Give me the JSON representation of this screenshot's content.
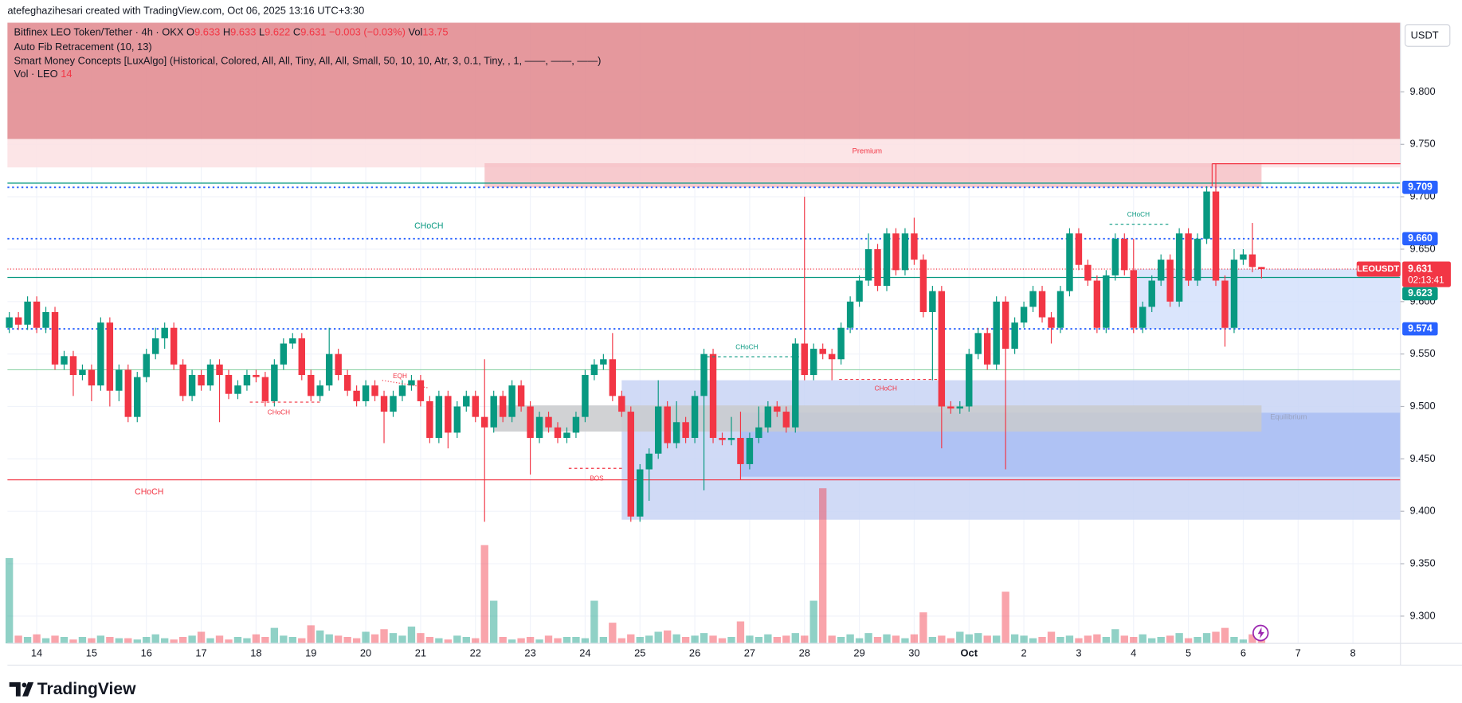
{
  "header": {
    "caption": "atefeghazihesari created with TradingView.com, Oct 06, 2025 13:16 UTC+3:30",
    "currency": "USDT",
    "brand": "TradingView"
  },
  "legend": {
    "symbol": "Bitfinex LEO Token/Tether · 4h · OKX",
    "ohlc": [
      {
        "key": "O",
        "value": "9.633"
      },
      {
        "key": "H",
        "value": "9.633"
      },
      {
        "key": "L",
        "value": "9.622"
      },
      {
        "key": "C",
        "value": "9.631"
      }
    ],
    "change": "−0.003 (−0.03%)",
    "vol_key": "Vol",
    "vol_value": "13.75",
    "indicators": [
      "Auto Fib Retracement (10, 13)",
      "Smart Money Concepts [LuxAlgo] (Historical, Colored, All, All, Tiny, All, All, Small, 50, 10, 10, Atr, 3, 0.1, Tiny, , 1, ——, ——, ——)"
    ],
    "volume_key": "Vol · LEO",
    "volume_value": "14"
  },
  "annotations": [
    "CHoCH",
    "CHoCH",
    "CHoCH",
    "EQH",
    "BOS",
    "CHoCH",
    "CHoCH",
    "CHoCH",
    "Premium",
    "Equilibrium"
  ],
  "chart_data": {
    "type": "candlestick",
    "up_color": "#089981",
    "down_color": "#f23645",
    "xlim": [
      -0.2,
      152.2
    ],
    "ylim": [
      9.274,
      9.866
    ],
    "yticks": [
      {
        "value": 9.8,
        "label": "9.800"
      },
      {
        "value": 9.75,
        "label": "9.750"
      },
      {
        "value": 9.7,
        "label": "9.700"
      },
      {
        "value": 9.65,
        "label": "9.650"
      },
      {
        "value": 9.6,
        "label": "9.600"
      },
      {
        "value": 9.55,
        "label": "9.550"
      },
      {
        "value": 9.5,
        "label": "9.500"
      },
      {
        "value": 9.45,
        "label": "9.450"
      },
      {
        "value": 9.4,
        "label": "9.400"
      },
      {
        "value": 9.35,
        "label": "9.350"
      },
      {
        "value": 9.3,
        "label": "9.300"
      }
    ],
    "xticks": [
      {
        "value": 3,
        "label": "14"
      },
      {
        "value": 9,
        "label": "15"
      },
      {
        "value": 15,
        "label": "16"
      },
      {
        "value": 21,
        "label": "17"
      },
      {
        "value": 27,
        "label": "18"
      },
      {
        "value": 33,
        "label": "19"
      },
      {
        "value": 39,
        "label": "20"
      },
      {
        "value": 45,
        "label": "21"
      },
      {
        "value": 51,
        "label": "22"
      },
      {
        "value": 57,
        "label": "23"
      },
      {
        "value": 63,
        "label": "24"
      },
      {
        "value": 69,
        "label": "25"
      },
      {
        "value": 75,
        "label": "26"
      },
      {
        "value": 81,
        "label": "27"
      },
      {
        "value": 87,
        "label": "28"
      },
      {
        "value": 93,
        "label": "29"
      },
      {
        "value": 99,
        "label": "30"
      },
      {
        "value": 105,
        "label": "Oct"
      },
      {
        "value": 111,
        "label": "2"
      },
      {
        "value": 117,
        "label": "3"
      },
      {
        "value": 123,
        "label": "4"
      },
      {
        "value": 129,
        "label": "5"
      },
      {
        "value": 135,
        "label": "6"
      },
      {
        "value": 141,
        "label": "7"
      },
      {
        "value": 147,
        "label": "8"
      }
    ],
    "grid": true,
    "open": [
      9.575,
      9.585,
      9.578,
      9.6,
      9.575,
      9.59,
      9.54,
      9.548,
      9.53,
      9.535,
      9.52,
      9.58,
      9.515,
      9.535,
      9.49,
      9.528,
      9.55,
      9.565,
      9.575,
      9.54,
      9.51,
      9.53,
      9.52,
      9.54,
      9.53,
      9.512,
      9.52,
      9.53,
      9.528,
      9.505,
      9.54,
      9.56,
      9.565,
      9.53,
      9.51,
      9.52,
      9.55,
      9.53,
      9.515,
      9.505,
      9.52,
      9.51,
      9.495,
      9.51,
      9.52,
      9.525,
      9.505,
      9.47,
      9.51,
      9.475,
      9.5,
      9.51,
      9.49,
      9.48,
      9.51,
      9.49,
      9.52,
      9.5,
      9.47,
      9.49,
      9.48,
      9.47,
      9.475,
      9.49,
      9.53,
      9.54,
      9.545,
      9.51,
      9.495,
      9.395,
      9.44,
      9.455,
      9.5,
      9.465,
      9.485,
      9.47,
      9.51,
      9.55,
      9.47,
      9.468,
      9.47,
      9.445,
      9.47,
      9.48,
      9.5,
      9.495,
      9.48,
      9.56,
      9.53,
      9.555,
      9.55,
      9.545,
      9.575,
      9.6,
      9.62,
      9.65,
      9.615,
      9.665,
      9.63,
      9.665,
      9.64,
      9.59,
      9.61,
      9.5,
      9.498,
      9.5,
      9.55,
      9.57,
      9.54,
      9.6,
      9.555,
      9.58,
      9.595,
      9.61,
      9.585,
      9.575,
      9.61,
      9.665,
      9.635,
      9.62,
      9.575,
      9.625,
      9.66,
      9.63,
      9.575,
      9.595,
      9.62,
      9.64,
      9.6,
      9.665,
      9.62,
      9.66,
      9.705,
      9.62,
      9.575,
      9.64,
      9.645,
      9.633
    ],
    "high": [
      9.59,
      9.59,
      9.605,
      9.605,
      9.595,
      9.595,
      9.553,
      9.553,
      9.54,
      9.54,
      9.585,
      9.585,
      9.54,
      9.54,
      9.533,
      9.555,
      9.575,
      9.58,
      9.58,
      9.545,
      9.535,
      9.535,
      9.545,
      9.545,
      9.535,
      9.525,
      9.535,
      9.535,
      9.533,
      9.545,
      9.565,
      9.57,
      9.57,
      9.535,
      9.525,
      9.575,
      9.555,
      9.535,
      9.52,
      9.525,
      9.525,
      9.515,
      9.515,
      9.525,
      9.53,
      9.53,
      9.51,
      9.515,
      9.515,
      9.505,
      9.515,
      9.515,
      9.545,
      9.515,
      9.515,
      9.525,
      9.525,
      9.505,
      9.495,
      9.495,
      9.485,
      9.48,
      9.495,
      9.535,
      9.545,
      9.55,
      9.57,
      9.515,
      9.5,
      9.445,
      9.46,
      9.525,
      9.505,
      9.505,
      9.49,
      9.515,
      9.555,
      9.555,
      9.475,
      9.49,
      9.495,
      9.475,
      9.5,
      9.505,
      9.505,
      9.5,
      9.565,
      9.7,
      9.56,
      9.56,
      9.555,
      9.58,
      9.605,
      9.625,
      9.665,
      9.655,
      9.67,
      9.67,
      9.67,
      9.68,
      9.645,
      9.615,
      9.615,
      9.505,
      9.505,
      9.555,
      9.575,
      9.575,
      9.605,
      9.605,
      9.585,
      9.6,
      9.615,
      9.615,
      9.59,
      9.615,
      9.67,
      9.67,
      9.64,
      9.625,
      9.63,
      9.665,
      9.665,
      9.66,
      9.6,
      9.625,
      9.645,
      9.645,
      9.67,
      9.67,
      9.665,
      9.71,
      9.732,
      9.625,
      9.65,
      9.65,
      9.675,
      9.633
    ],
    "low": [
      9.57,
      9.573,
      9.573,
      9.57,
      9.57,
      9.535,
      9.535,
      9.51,
      9.525,
      9.505,
      9.515,
      9.5,
      9.505,
      9.485,
      9.485,
      9.523,
      9.545,
      9.555,
      9.535,
      9.505,
      9.505,
      9.515,
      9.515,
      9.485,
      9.507,
      9.507,
      9.515,
      9.523,
      9.5,
      9.5,
      9.535,
      9.555,
      9.525,
      9.505,
      9.505,
      9.515,
      9.525,
      9.51,
      9.5,
      9.5,
      9.505,
      9.465,
      9.49,
      9.505,
      9.515,
      9.5,
      9.465,
      9.465,
      9.46,
      9.47,
      9.495,
      9.485,
      9.39,
      9.475,
      9.485,
      9.485,
      9.495,
      9.435,
      9.465,
      9.475,
      9.465,
      9.465,
      9.47,
      9.485,
      9.525,
      9.535,
      9.505,
      9.49,
      9.39,
      9.39,
      9.41,
      9.45,
      9.46,
      9.46,
      9.465,
      9.465,
      9.42,
      9.465,
      9.463,
      9.463,
      9.43,
      9.44,
      9.465,
      9.475,
      9.49,
      9.475,
      9.475,
      9.525,
      9.525,
      9.545,
      9.525,
      9.54,
      9.57,
      9.595,
      9.615,
      9.61,
      9.61,
      9.625,
      9.625,
      9.635,
      9.585,
      9.525,
      9.46,
      9.493,
      9.493,
      9.495,
      9.545,
      9.535,
      9.535,
      9.44,
      9.55,
      9.575,
      9.59,
      9.58,
      9.56,
      9.57,
      9.605,
      9.63,
      9.615,
      9.57,
      9.57,
      9.62,
      9.625,
      9.57,
      9.57,
      9.59,
      9.615,
      9.595,
      9.595,
      9.615,
      9.615,
      9.655,
      9.615,
      9.557,
      9.57,
      9.635,
      9.628,
      9.622
    ],
    "close": [
      9.585,
      9.578,
      9.6,
      9.575,
      9.59,
      9.54,
      9.548,
      9.53,
      9.535,
      9.52,
      9.58,
      9.515,
      9.535,
      9.49,
      9.528,
      9.55,
      9.565,
      9.575,
      9.54,
      9.51,
      9.53,
      9.52,
      9.54,
      9.53,
      9.512,
      9.52,
      9.53,
      9.528,
      9.505,
      9.54,
      9.56,
      9.565,
      9.53,
      9.51,
      9.52,
      9.55,
      9.53,
      9.515,
      9.505,
      9.52,
      9.51,
      9.495,
      9.51,
      9.52,
      9.525,
      9.505,
      9.47,
      9.51,
      9.475,
      9.5,
      9.51,
      9.49,
      9.48,
      9.51,
      9.49,
      9.52,
      9.5,
      9.47,
      9.49,
      9.48,
      9.47,
      9.475,
      9.49,
      9.53,
      9.54,
      9.545,
      9.51,
      9.495,
      9.395,
      9.44,
      9.455,
      9.5,
      9.465,
      9.485,
      9.47,
      9.51,
      9.55,
      9.47,
      9.468,
      9.47,
      9.445,
      9.47,
      9.48,
      9.5,
      9.495,
      9.48,
      9.56,
      9.53,
      9.555,
      9.55,
      9.545,
      9.575,
      9.6,
      9.62,
      9.65,
      9.615,
      9.665,
      9.63,
      9.665,
      9.64,
      9.59,
      9.61,
      9.5,
      9.498,
      9.5,
      9.55,
      9.57,
      9.54,
      9.6,
      9.555,
      9.58,
      9.595,
      9.61,
      9.585,
      9.575,
      9.61,
      9.665,
      9.635,
      9.62,
      9.575,
      9.625,
      9.66,
      9.63,
      9.575,
      9.595,
      9.62,
      9.64,
      9.6,
      9.665,
      9.62,
      9.66,
      9.705,
      9.62,
      9.575,
      9.64,
      9.645,
      9.633,
      9.631
    ],
    "volume": [
      330,
      30,
      25,
      35,
      20,
      30,
      25,
      15,
      25,
      20,
      30,
      25,
      20,
      20,
      15,
      25,
      35,
      20,
      15,
      25,
      30,
      45,
      20,
      30,
      15,
      25,
      20,
      35,
      25,
      60,
      30,
      25,
      20,
      70,
      50,
      35,
      30,
      25,
      20,
      45,
      35,
      55,
      40,
      30,
      65,
      40,
      25,
      20,
      15,
      30,
      25,
      20,
      380,
      165,
      25,
      15,
      20,
      25,
      15,
      30,
      20,
      25,
      25,
      20,
      165,
      25,
      80,
      20,
      35,
      25,
      30,
      45,
      50,
      35,
      25,
      30,
      40,
      30,
      20,
      25,
      85,
      30,
      25,
      35,
      25,
      30,
      40,
      30,
      165,
      600,
      30,
      25,
      35,
      20,
      40,
      25,
      35,
      30,
      20,
      35,
      120,
      25,
      30,
      20,
      45,
      35,
      40,
      30,
      30,
      200,
      35,
      30,
      20,
      25,
      45,
      25,
      30,
      20,
      30,
      35,
      25,
      55,
      30,
      25,
      35,
      20,
      25,
      30,
      40,
      20,
      25,
      40,
      45,
      60,
      25,
      15,
      35,
      14
    ],
    "volume_ylim": [
      0,
      2400
    ],
    "zones": [
      {
        "top": 9.866,
        "bottom": 9.755,
        "from": -0.2,
        "color": "#e0868c"
      },
      {
        "top": 9.755,
        "bottom": 9.728,
        "from": -0.2,
        "color": "#fbe1e3"
      },
      {
        "top": 9.732,
        "bottom": 9.709,
        "from": 52,
        "to": 137,
        "color": "#f6c1c5"
      },
      {
        "top": 9.525,
        "bottom": 9.392,
        "from": 67,
        "color": "#c8d3f5"
      },
      {
        "top": 9.494,
        "bottom": 9.433,
        "from": 80,
        "color": "#a9bdf3"
      },
      {
        "top": 9.501,
        "bottom": 9.476,
        "from": 53,
        "to": 137,
        "color": "#c9cacd"
      },
      {
        "top": 9.631,
        "bottom": 9.574,
        "from": 123,
        "color": "#d4e0fb"
      }
    ],
    "levels": [
      {
        "price": 9.709,
        "color": "#2962ff",
        "style": "dotted",
        "tag": true
      },
      {
        "price": 9.66,
        "label": "9.660",
        "color": "#2962ff",
        "style": "dotted",
        "tag": true
      },
      {
        "price": 9.623,
        "color": "#089981",
        "style": "solid",
        "tag": true
      },
      {
        "price": 9.574,
        "color": "#2962ff",
        "style": "dotted",
        "tag": true
      },
      {
        "price": 9.535,
        "color": "#8fd3a8",
        "style": "solid"
      },
      {
        "price": 9.43,
        "color": "#f23645",
        "style": "solid"
      },
      {
        "price": 9.713,
        "color": "#089981",
        "style": "solid"
      }
    ],
    "last": {
      "price": 9.631,
      "symbol": "LEOUSDT",
      "countdown": "02:13:41",
      "color": "#f23645"
    }
  }
}
